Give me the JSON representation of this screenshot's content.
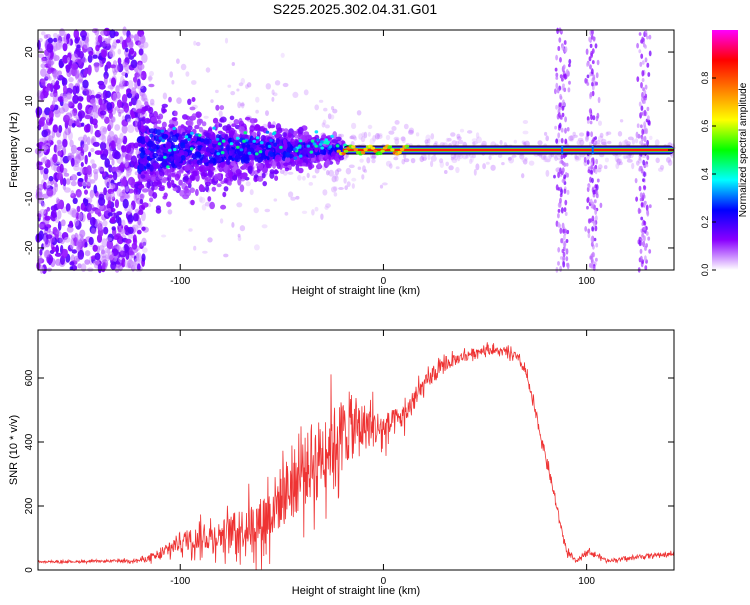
{
  "title": "S225.2025.302.04.31.G01",
  "chart_data": [
    {
      "type": "heatmap",
      "xlabel": "Height of straight line (km)",
      "ylabel": "Frequency (Hz)",
      "xlim": [
        -170,
        143
      ],
      "ylim": [
        -24.5,
        24.5
      ],
      "xticks": [
        -100,
        0,
        100
      ],
      "yticks": [
        -20,
        -10,
        0,
        10,
        20
      ],
      "colorbar": {
        "label": "Normalized spectral amplitude",
        "range": [
          0.0,
          1.0
        ],
        "ticks": [
          "0.0",
          "0.2",
          "0.4",
          "0.6",
          "0.8"
        ],
        "colormap": [
          "#ffffff",
          "#8a00ff",
          "#0000ff",
          "#00ffff",
          "#00ff00",
          "#ffff00",
          "#ff8000",
          "#ff0000",
          "#ff00ff"
        ]
      },
      "features": {
        "noise_region_x": [
          -170,
          -120
        ],
        "spread_region_x": [
          -120,
          -20
        ],
        "carrier_line_x": [
          -20,
          143
        ],
        "carrier_frequency_hz": 0,
        "carrier_level": 0.85,
        "vertical_noise_bands_x": [
          88,
          103,
          128
        ]
      }
    },
    {
      "type": "line",
      "xlabel": "Height of straight line (km)",
      "ylabel": "SNR (10 * v/v)",
      "xlim": [
        -170,
        143
      ],
      "ylim": [
        0,
        750
      ],
      "xticks": [
        -100,
        0,
        100
      ],
      "yticks": [
        0,
        200,
        400,
        600
      ],
      "series": [
        {
          "color": "#ee3333",
          "profile_x": [
            -170,
            -140,
            -120,
            -110,
            -100,
            -80,
            -60,
            -50,
            -40,
            -30,
            -20,
            -10,
            0,
            10,
            20,
            30,
            40,
            50,
            60,
            65,
            70,
            80,
            90,
            95,
            100,
            110,
            120,
            130,
            143
          ],
          "profile_y": [
            25,
            27,
            30,
            45,
            90,
            110,
            150,
            230,
            300,
            370,
            430,
            450,
            440,
            480,
            580,
            640,
            670,
            690,
            680,
            670,
            620,
            350,
            60,
            25,
            60,
            30,
            35,
            45,
            50
          ],
          "noise_amplitude": [
            5,
            6,
            10,
            30,
            60,
            90,
            160,
            200,
            220,
            230,
            220,
            150,
            100,
            70,
            50,
            40,
            30,
            25,
            25,
            25,
            30,
            30,
            20,
            10,
            15,
            10,
            10,
            12,
            12
          ]
        }
      ]
    }
  ]
}
